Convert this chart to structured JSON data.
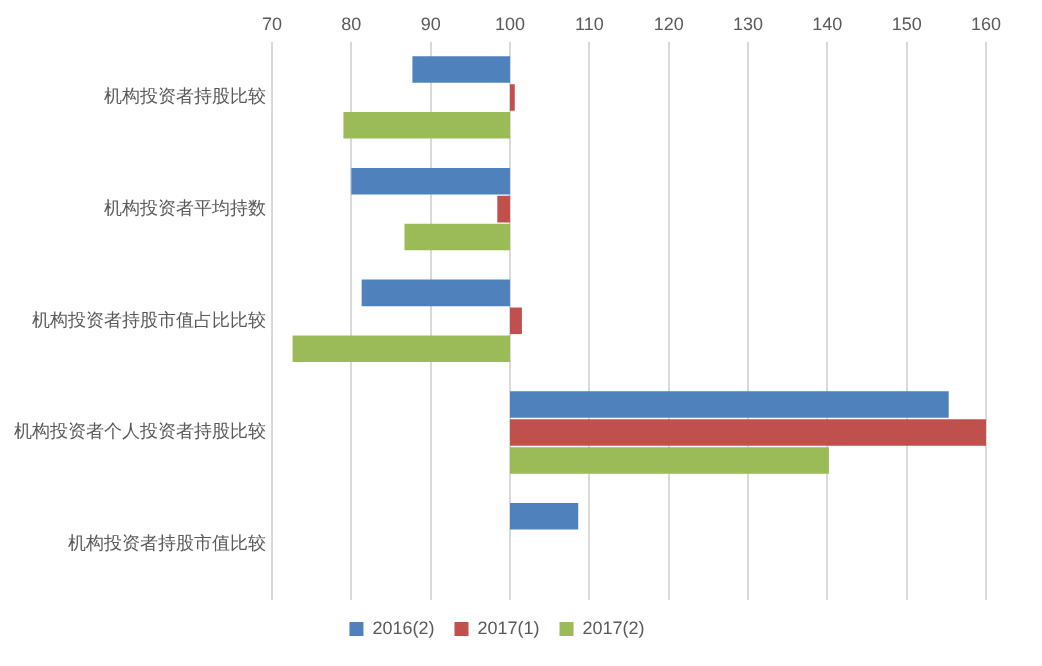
{
  "chart_data": {
    "type": "bar",
    "orientation": "horizontal",
    "categories": [
      "机构投资者持股比较",
      "机构投资者平均持数",
      "机构投资者持股市值占比比较",
      "机构投资者个人投资者持股比较",
      "机构投资者持股市值比较"
    ],
    "series": [
      {
        "name": "2016(2)",
        "color": "#4f81bd",
        "base": [
          100,
          100,
          100,
          100,
          100
        ],
        "values": [
          -12.3,
          -20,
          -18.7,
          55.3,
          8.6
        ]
      },
      {
        "name": "2017(1)",
        "color": "#c0504d",
        "base": [
          100,
          100,
          100,
          100,
          null
        ],
        "values": [
          0.6,
          -1.6,
          1.5,
          60,
          null
        ]
      },
      {
        "name": "2017(2)",
        "color": "#9bbb59",
        "base": [
          100,
          100,
          100,
          100,
          null
        ],
        "values": [
          -21,
          -13.3,
          -27.4,
          40.2,
          null
        ]
      }
    ],
    "xlim": [
      70,
      160
    ],
    "xticks": [
      70,
      80,
      90,
      100,
      110,
      120,
      130,
      140,
      150,
      160
    ],
    "grid": "x",
    "legend": "bottom"
  }
}
